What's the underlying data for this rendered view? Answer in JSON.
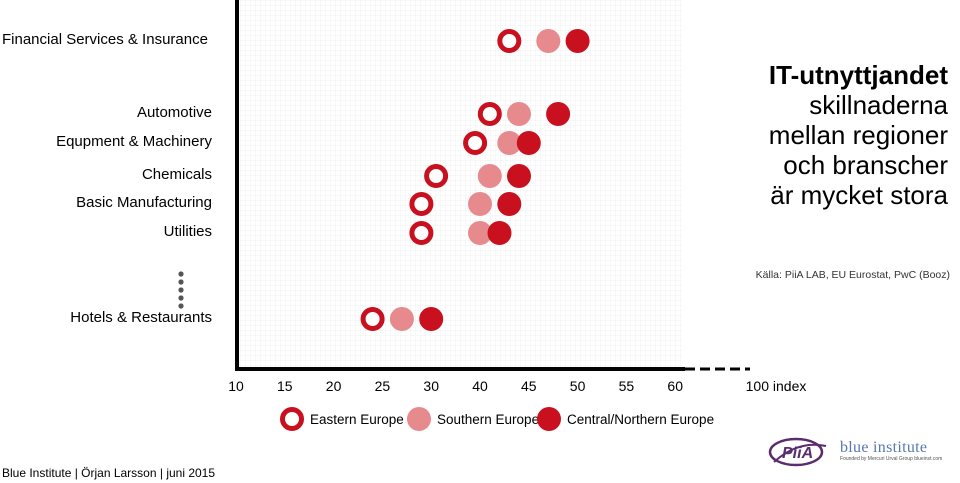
{
  "chart_data": {
    "type": "scatter",
    "title": "IT-utnyttjandet",
    "subtitle_lines": [
      "skillnaderna",
      "mellan regioner",
      "och branscher",
      "är mycket stora"
    ],
    "source": "Källa: PiiA LAB, EU Eurostat, PwC (Booz)",
    "x_ticks": [
      "10",
      "15",
      "20",
      "25",
      "30",
      "40",
      "45",
      "50",
      "55",
      "60"
    ],
    "x_end_label": "100 index",
    "categories": [
      "Financial Services & Insurance",
      "Automotive",
      "Equpment & Machinery",
      "Chemicals",
      "Basic Manufacturing",
      "Utilities",
      "Hotels & Restaurants"
    ],
    "series": [
      {
        "name": "Eastern Europe",
        "color": "#c8101e",
        "style": "ring",
        "values": [
          43,
          41,
          39,
          31,
          29,
          29,
          24
        ]
      },
      {
        "name": "Southern Europe",
        "color": "#e68a8e",
        "style": "light",
        "values": [
          47,
          44,
          43,
          41,
          40,
          40,
          27
        ]
      },
      {
        "name": "Central/Northern Europe",
        "color": "#c8101e",
        "style": "solid",
        "values": [
          50,
          48,
          45,
          44,
          43,
          42,
          30
        ]
      }
    ],
    "grid": true
  },
  "footer": {
    "text": "Blue Institute | Örjan Larsson | juni 2015"
  },
  "logos": {
    "piia": "PiiA",
    "blue_title": "blue institute",
    "blue_sub": "Founded by Mercuri Urval Group  blueinst.com"
  }
}
